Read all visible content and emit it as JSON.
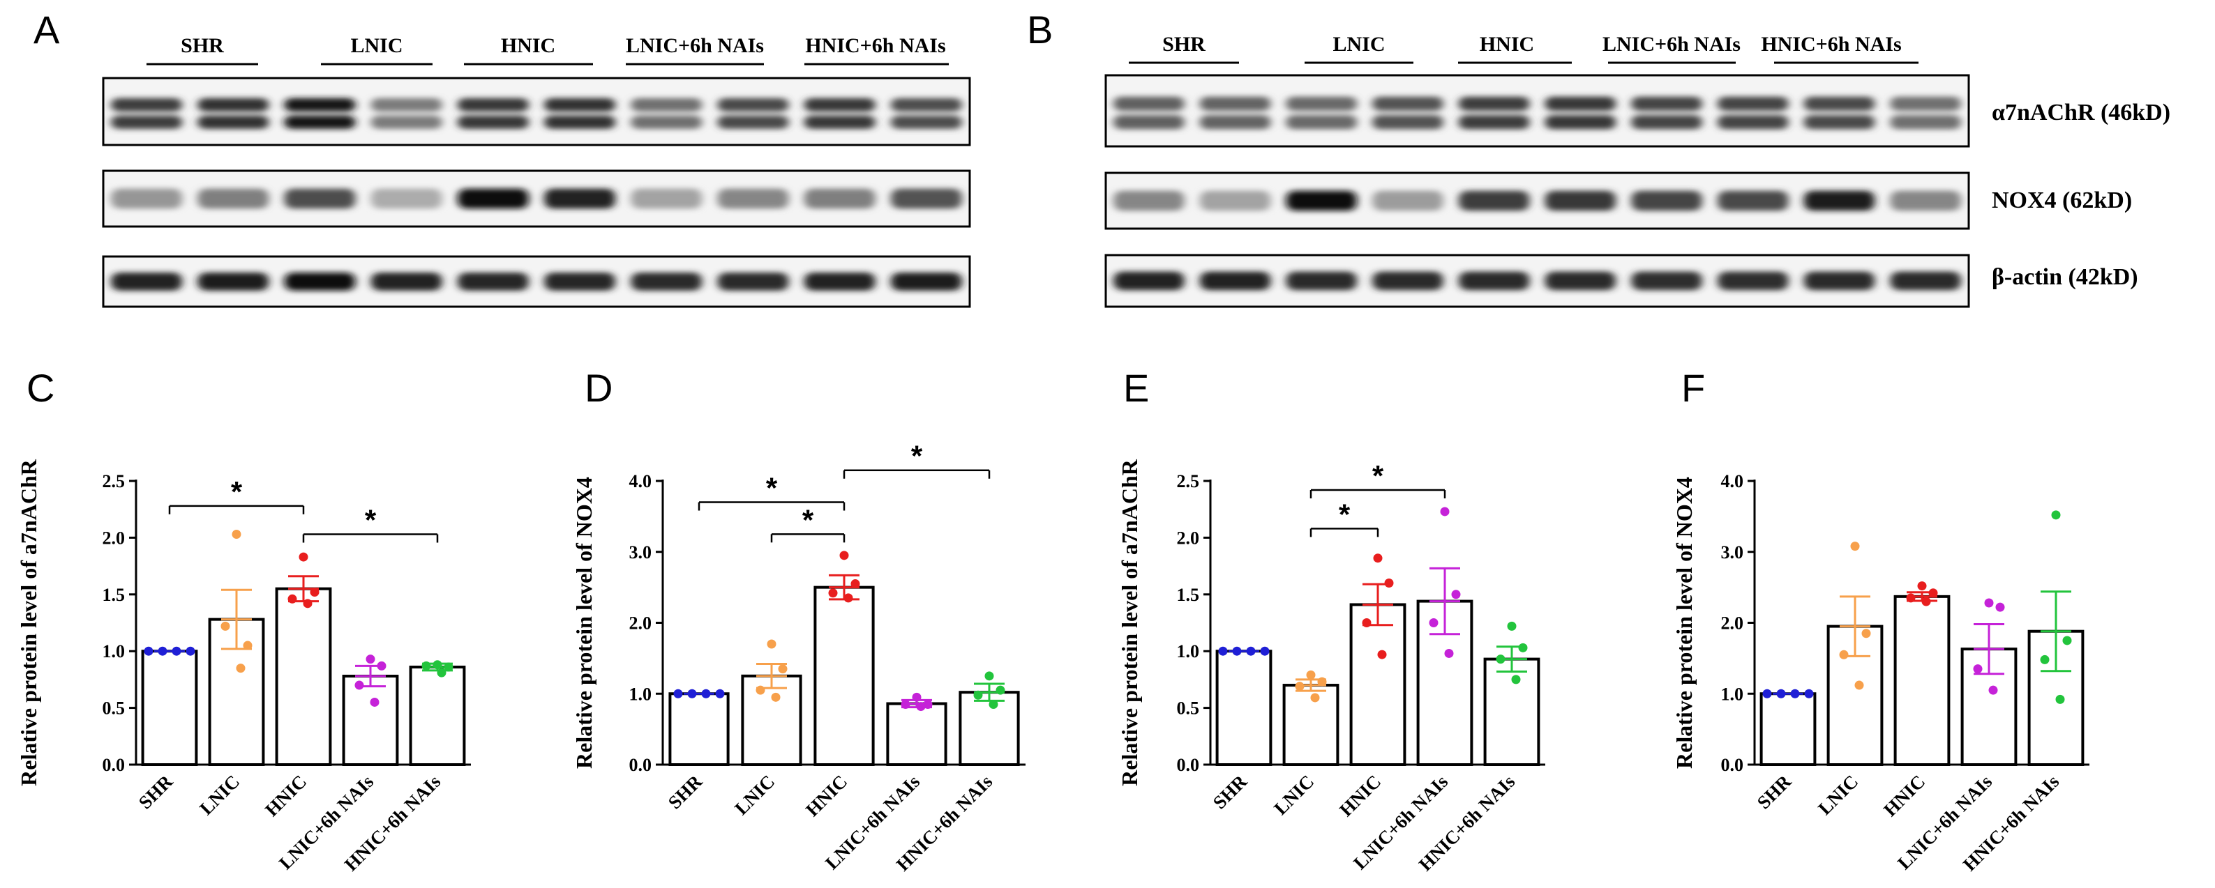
{
  "panels": {
    "A": "A",
    "B": "B",
    "C": "C",
    "D": "D",
    "E": "E",
    "F": "F"
  },
  "blots": [
    {
      "panel": "A",
      "groups": [
        "SHR",
        "LNIC",
        "HNIC",
        "LNIC+6h NAIs",
        "HNIC+6h NAIs"
      ],
      "rows": [
        {
          "intensities": [
            0.78,
            0.82,
            0.95,
            0.5,
            0.8,
            0.82,
            0.55,
            0.72,
            0.8,
            0.7
          ],
          "double": true
        },
        {
          "intensities": [
            0.38,
            0.48,
            0.7,
            0.28,
            1.0,
            0.9,
            0.32,
            0.45,
            0.48,
            0.68
          ],
          "double": false
        },
        {
          "intensities": [
            0.9,
            0.92,
            0.97,
            0.9,
            0.88,
            0.88,
            0.86,
            0.86,
            0.9,
            0.92
          ],
          "double": false
        }
      ]
    },
    {
      "panel": "B",
      "groups": [
        "SHR",
        "LNIC",
        "HNIC",
        "LNIC+6h NAIs",
        "HNIC+6h NAIs"
      ],
      "labels": [
        "α7nAChR (46kD)",
        "NOX4 (62kD)",
        "β-actin (42kD)"
      ],
      "rows": [
        {
          "intensities": [
            0.62,
            0.6,
            0.58,
            0.68,
            0.78,
            0.8,
            0.74,
            0.74,
            0.72,
            0.55
          ],
          "double": true
        },
        {
          "intensities": [
            0.45,
            0.32,
            0.98,
            0.35,
            0.78,
            0.8,
            0.74,
            0.72,
            0.92,
            0.45
          ],
          "double": false
        },
        {
          "intensities": [
            0.9,
            0.9,
            0.86,
            0.86,
            0.86,
            0.86,
            0.84,
            0.84,
            0.86,
            0.86
          ],
          "double": false
        }
      ]
    }
  ],
  "chart_data": [
    {
      "panel": "C",
      "type": "bar",
      "categories": [
        "SHR",
        "LNIC",
        "HNIC",
        "LNIC+6h NAIs",
        "HNIC+6h NAIs"
      ],
      "series": [
        {
          "values": [
            1.0,
            1.28,
            1.55,
            0.78,
            0.86
          ],
          "sem": [
            0.0,
            0.26,
            0.11,
            0.09,
            0.03
          ],
          "colors": [
            "#1f1fd6",
            "#f7a04b",
            "#e81e1e",
            "#c522d8",
            "#22c43c"
          ],
          "points": [
            [
              1.0,
              1.0,
              1.0,
              1.0
            ],
            [
              2.03,
              1.05,
              1.22,
              0.85
            ],
            [
              1.83,
              1.52,
              1.46,
              1.42
            ],
            [
              0.93,
              0.87,
              0.7,
              0.55
            ],
            [
              0.88,
              0.86,
              0.87,
              0.81
            ]
          ]
        }
      ],
      "ylabel": "Relative protein level of a7nAChR",
      "ylim": [
        0,
        2.5
      ],
      "yticks": [
        "0.0",
        "0.5",
        "1.0",
        "1.5",
        "2.0",
        "2.5"
      ],
      "significance": [
        {
          "from": 0,
          "to": 2,
          "y": 2.28,
          "label": "*"
        },
        {
          "from": 2,
          "to": 4,
          "y": 2.03,
          "label": "*"
        }
      ]
    },
    {
      "panel": "D",
      "type": "bar",
      "categories": [
        "SHR",
        "LNIC",
        "HNIC",
        "LNIC+6h NAIs",
        "HNIC+6h NAIs"
      ],
      "series": [
        {
          "values": [
            1.0,
            1.25,
            2.5,
            0.86,
            1.02
          ],
          "sem": [
            0.0,
            0.17,
            0.17,
            0.05,
            0.12
          ],
          "colors": [
            "#1f1fd6",
            "#f7a04b",
            "#e81e1e",
            "#c522d8",
            "#22c43c"
          ],
          "points": [
            [
              1.0,
              1.0,
              1.0,
              1.0
            ],
            [
              1.7,
              1.35,
              1.05,
              0.95
            ],
            [
              2.95,
              2.55,
              2.42,
              2.35
            ],
            [
              0.95,
              0.85,
              0.85,
              0.82
            ],
            [
              1.25,
              1.05,
              0.98,
              0.85
            ]
          ]
        }
      ],
      "ylabel": "Relative protein level of NOX4",
      "ylim": [
        0,
        4.0
      ],
      "yticks": [
        "0.0",
        "1.0",
        "2.0",
        "3.0",
        "4.0"
      ],
      "significance": [
        {
          "from": 0,
          "to": 2,
          "y": 3.7,
          "label": "*"
        },
        {
          "from": 1,
          "to": 2,
          "y": 3.25,
          "label": "*"
        },
        {
          "from": 2,
          "to": 4,
          "y": 4.15,
          "label": "*"
        }
      ]
    },
    {
      "panel": "E",
      "type": "bar",
      "categories": [
        "SHR",
        "LNIC",
        "HNIC",
        "LNIC+6h NAIs",
        "HNIC+6h NAIs"
      ],
      "series": [
        {
          "values": [
            1.0,
            0.7,
            1.41,
            1.44,
            0.93
          ],
          "sem": [
            0.0,
            0.05,
            0.18,
            0.29,
            0.11
          ],
          "colors": [
            "#1f1fd6",
            "#f7a04b",
            "#e81e1e",
            "#c522d8",
            "#22c43c"
          ],
          "points": [
            [
              1.0,
              1.0,
              1.0,
              1.0
            ],
            [
              0.79,
              0.73,
              0.69,
              0.59
            ],
            [
              1.82,
              1.6,
              1.25,
              0.97
            ],
            [
              2.23,
              1.5,
              1.25,
              0.98
            ],
            [
              1.22,
              1.03,
              0.93,
              0.75
            ]
          ]
        }
      ],
      "ylabel": "Relative protein level of a7nAChR",
      "ylim": [
        0,
        2.5
      ],
      "yticks": [
        "0.0",
        "0.5",
        "1.0",
        "1.5",
        "2.0",
        "2.5"
      ],
      "significance": [
        {
          "from": 1,
          "to": 3,
          "y": 2.42,
          "label": "*"
        },
        {
          "from": 1,
          "to": 2,
          "y": 2.08,
          "label": "*"
        }
      ]
    },
    {
      "panel": "F",
      "type": "bar",
      "categories": [
        "SHR",
        "LNIC",
        "HNIC",
        "LNIC+6h NAIs",
        "HNIC+6h NAIs"
      ],
      "series": [
        {
          "values": [
            1.0,
            1.95,
            2.37,
            1.63,
            1.88
          ],
          "sem": [
            0.0,
            0.42,
            0.06,
            0.35,
            0.56
          ],
          "colors": [
            "#1f1fd6",
            "#f7a04b",
            "#e81e1e",
            "#c522d8",
            "#22c43c"
          ],
          "points": [
            [
              1.0,
              1.0,
              1.0,
              1.0
            ],
            [
              3.08,
              1.85,
              1.55,
              1.12
            ],
            [
              2.52,
              2.42,
              2.35,
              2.3
            ],
            [
              2.28,
              2.22,
              1.35,
              1.05
            ],
            [
              3.52,
              1.75,
              1.48,
              0.92
            ]
          ]
        }
      ],
      "ylabel": "Relative protein level of NOX4",
      "ylim": [
        0,
        4.0
      ],
      "yticks": [
        "0.0",
        "1.0",
        "2.0",
        "3.0",
        "4.0"
      ],
      "significance": []
    }
  ]
}
